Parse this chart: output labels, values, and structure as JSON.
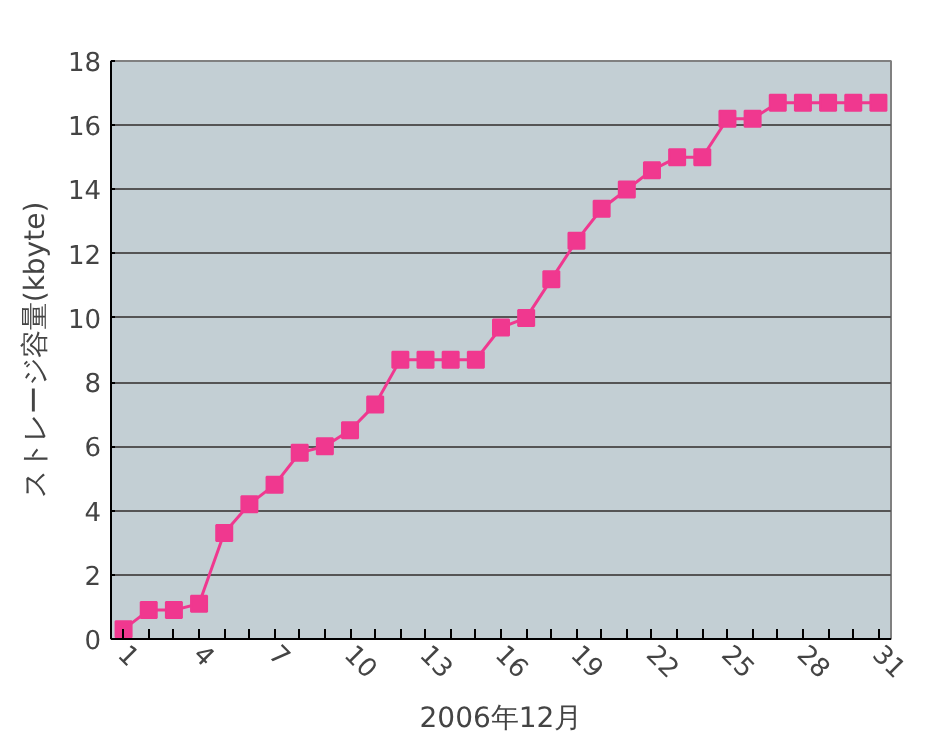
{
  "chart_data": {
    "type": "line",
    "xlabel": "2006年12月",
    "ylabel": "ストレージ容量(kbyte)",
    "categories": [
      "1",
      null,
      null,
      "4",
      null,
      null,
      "7",
      null,
      null,
      "10",
      null,
      null,
      "13",
      null,
      null,
      "16",
      null,
      null,
      "19",
      null,
      null,
      "22",
      null,
      null,
      "25",
      null,
      null,
      "28",
      null,
      null,
      "31"
    ],
    "series": [
      {
        "color": "#f0388f",
        "values": [
          0.3,
          0.9,
          0.9,
          1.1,
          3.3,
          4.2,
          4.8,
          5.8,
          6.0,
          6.5,
          7.3,
          8.7,
          8.7,
          8.7,
          8.7,
          9.7,
          10.0,
          11.2,
          12.4,
          13.4,
          14.0,
          14.6,
          15.0,
          15.0,
          16.2,
          16.2,
          16.7,
          16.7,
          16.7,
          16.7,
          16.7
        ]
      }
    ],
    "ylim": [
      0,
      18
    ],
    "yticks": [
      0,
      2,
      4,
      6,
      8,
      10,
      12,
      14,
      16,
      18
    ],
    "grid": "y",
    "marker": "square",
    "line_style": "solid"
  }
}
